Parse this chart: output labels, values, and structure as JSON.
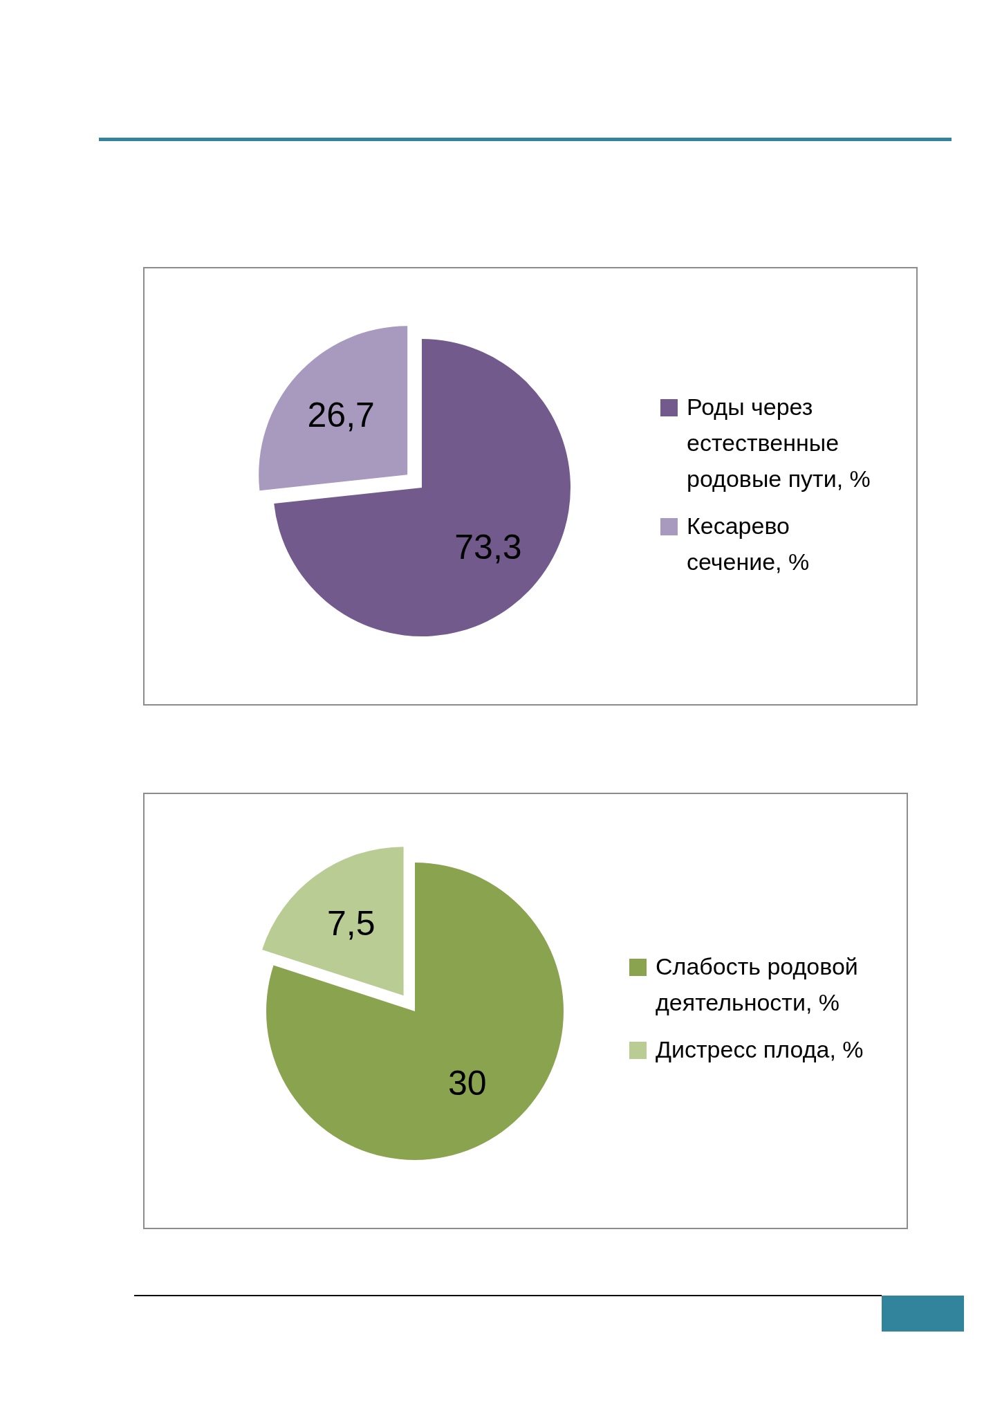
{
  "chart_data": [
    {
      "type": "pie",
      "categories": [
        "Роды через естественные родовые пути, %",
        "Кесарево сечение, %"
      ],
      "values": [
        73.3,
        26.7
      ],
      "colors": [
        "#725a8c",
        "#a899bf"
      ],
      "value_labels": [
        "73,3",
        "26,7"
      ],
      "legend": "right"
    },
    {
      "type": "pie",
      "categories": [
        "Слабость родовой деятельности, %",
        "Дистресс плода, %"
      ],
      "values": [
        30,
        7.5
      ],
      "colors": [
        "#8aa34e",
        "#b9cc94"
      ],
      "value_labels": [
        "30",
        "7,5"
      ],
      "legend": "right"
    }
  ]
}
